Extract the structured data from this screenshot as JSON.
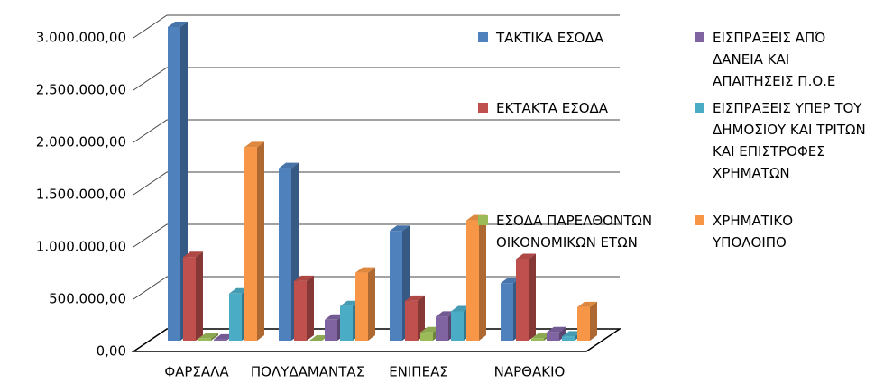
{
  "chart_data": {
    "type": "bar3d",
    "categories": [
      "ΦΑΡΣΑΛΑ",
      "ΠΟΛΥΔΑΜΑΝΤΑΣ",
      "ΕΝΙΠΕΑΣ",
      "ΝΑΡΘΑΚΙΟ"
    ],
    "series": [
      {
        "name": "ΤΑΚΤΙΚΑ ΕΣΟΔΑ",
        "color": "#4f81bd",
        "values": [
          3000000,
          1650000,
          1050000,
          550000
        ]
      },
      {
        "name": "ΕΚΤΑΚΤΑ ΕΣΟΔΑ",
        "color": "#c0504d",
        "values": [
          800000,
          570000,
          380000,
          780000
        ]
      },
      {
        "name": "ΕΣΟΔΑ ΠΑΡΕΛΘΟΝΤΩΝ ΟΙΚΟΝΟΜΙΚΩΝ ΕΤΩΝ",
        "color": "#9bbb59",
        "values": [
          20000,
          0,
          80000,
          20000
        ]
      },
      {
        "name": "ΕΙΣΠΡΑΞΕΙΣ ΑΠΌ ΔΑΝΕΙΑ ΚΑΙ ΑΠΑΙΤΗΣΕΙΣ Π.Ο.Ε",
        "color": "#8064a2",
        "values": [
          10000,
          200000,
          230000,
          80000
        ]
      },
      {
        "name": "ΕΙΣΠΡΑΞΕΙΣ ΥΠΕΡ ΤΟΥ ΔΗΜΟΣΙΟΥ ΚΑΙ ΤΡΙΤΩΝ ΚΑΙ ΕΠΙΣΤΡΟΦΕΣ ΧΡΗΜΑΤΩΝ",
        "color": "#4bacc6",
        "values": [
          450000,
          330000,
          280000,
          40000
        ]
      },
      {
        "name": "ΧΡΗΜΑΤΙΚΟ ΥΠΟΛΟΙΠΟ",
        "color": "#f79646",
        "values": [
          1850000,
          650000,
          1150000,
          320000
        ]
      }
    ],
    "ylim": [
      0,
      3000000
    ],
    "yticks": [
      {
        "value": 0,
        "label": "0,00"
      },
      {
        "value": 500000,
        "label": "500.000,00"
      },
      {
        "value": 1000000,
        "label": "1.000.000,00"
      },
      {
        "value": 1500000,
        "label": "1.500.000,00"
      },
      {
        "value": 2000000,
        "label": "2.000.000,00"
      },
      {
        "value": 2500000,
        "label": "2.500.000,00"
      },
      {
        "value": 3000000,
        "label": "3.000.000,00"
      }
    ],
    "grid": true
  }
}
